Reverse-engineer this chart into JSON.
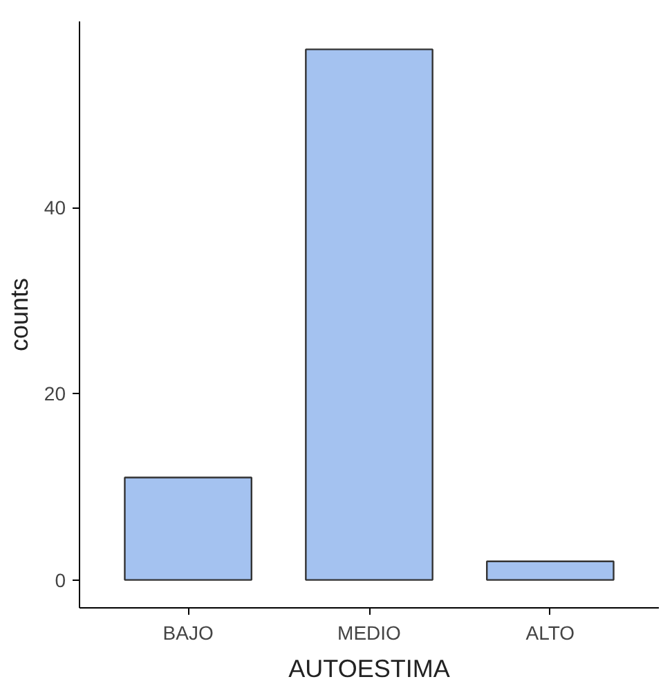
{
  "chart_data": {
    "type": "bar",
    "xlabel": "AUTOESTIMA",
    "ylabel": "counts",
    "categories": [
      "BAJO",
      "MEDIO",
      "ALTO"
    ],
    "values": [
      11,
      57,
      2
    ],
    "color": "#a4c2f0",
    "ylim": [
      -3,
      60
    ],
    "yticks": [
      0,
      20,
      40
    ],
    "grid": false
  }
}
